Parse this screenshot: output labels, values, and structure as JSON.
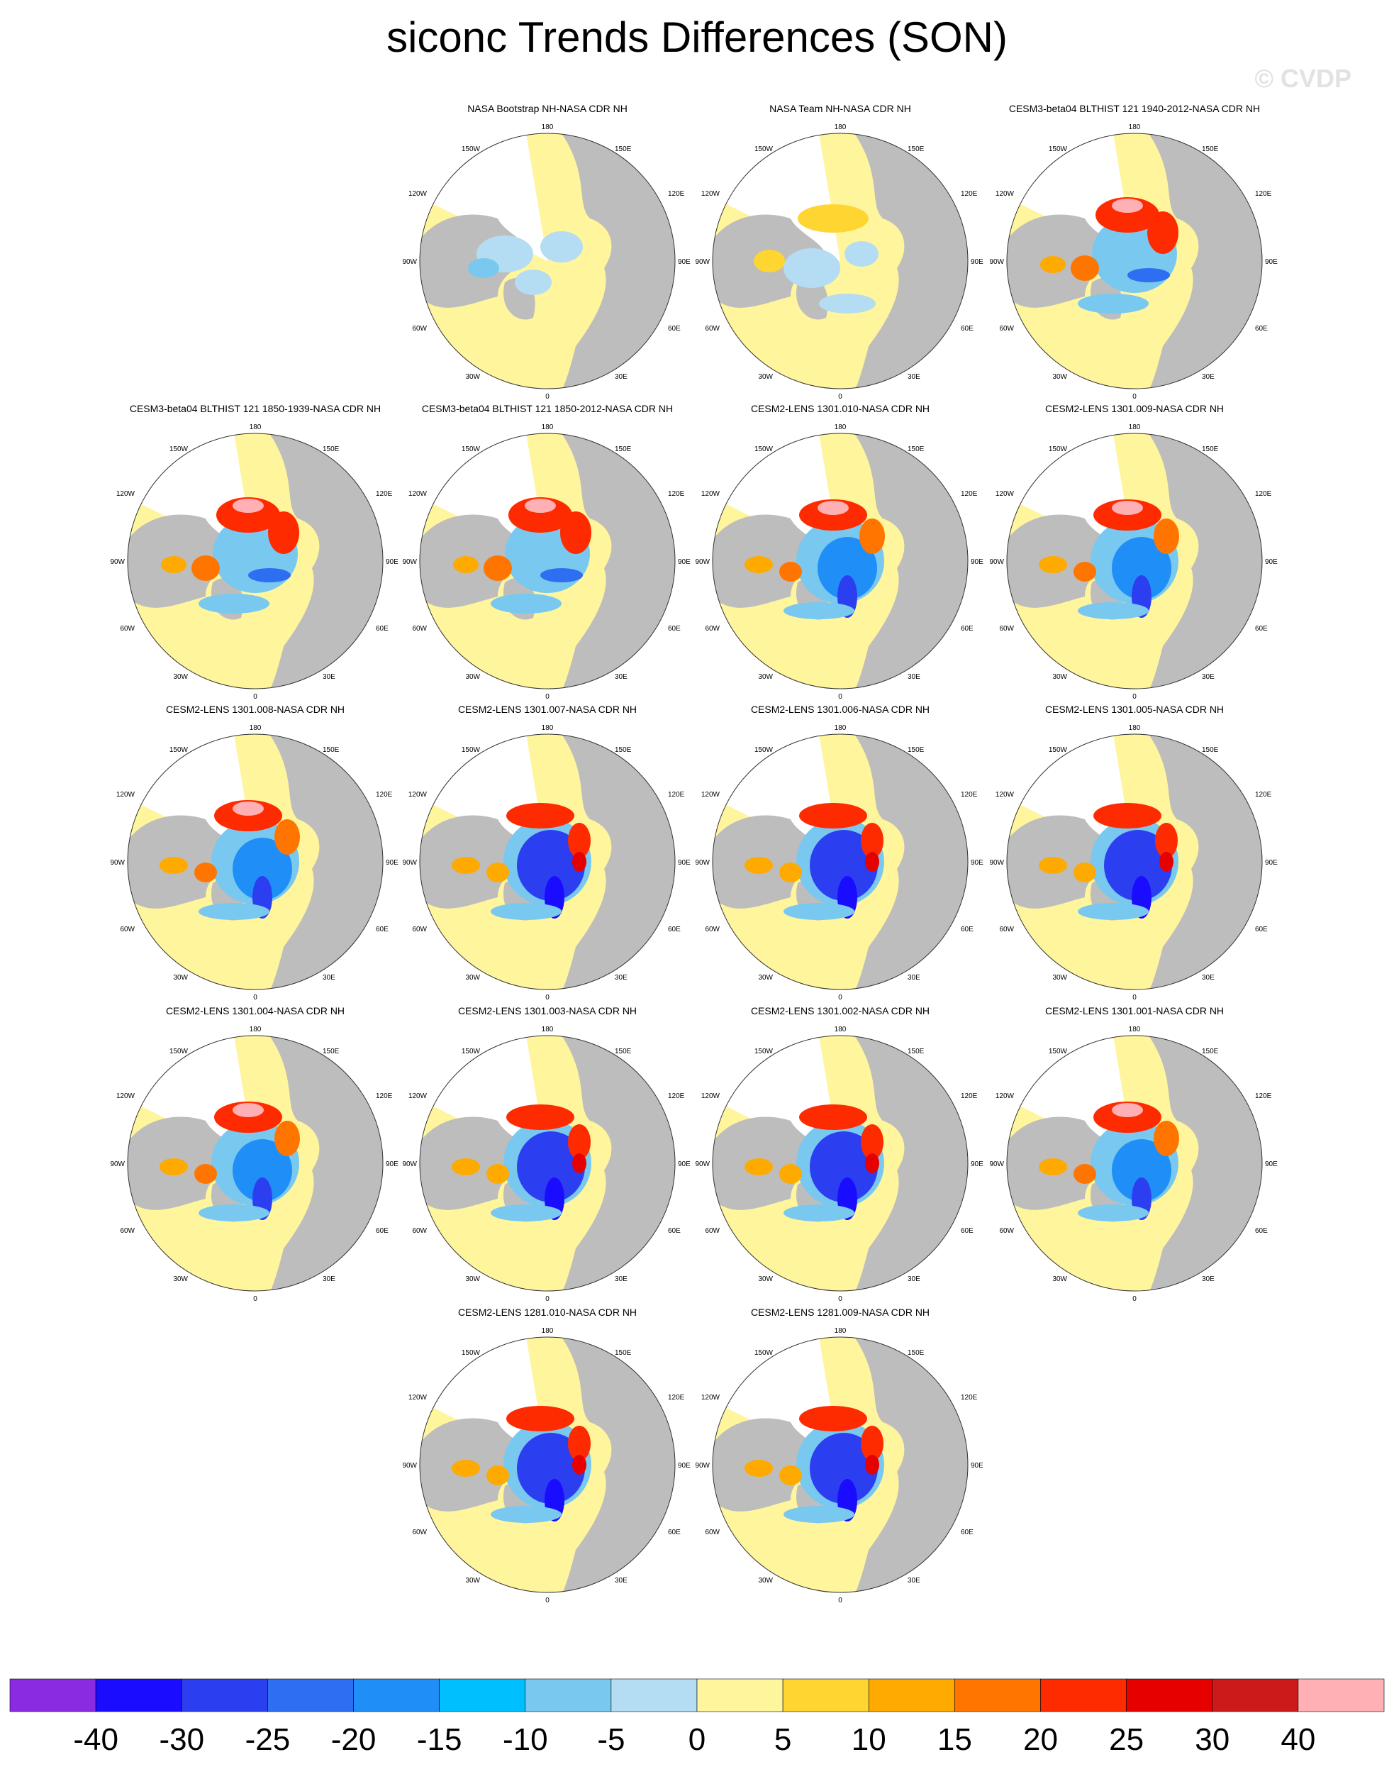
{
  "title": "siconc Trends Differences (SON)",
  "watermark": "© CVDP",
  "map_labels": {
    "top": "180",
    "bottom": "0",
    "left": "90W",
    "right": "90E",
    "others": [
      "150W",
      "150E",
      "120W",
      "120E",
      "60W",
      "60E",
      "30W",
      "30E"
    ]
  },
  "panels": [
    {
      "title": "NASA Bootstrap NH-NASA CDR NH",
      "pattern": "obs_bootstrap"
    },
    {
      "title": "NASA Team NH-NASA CDR NH",
      "pattern": "obs_team"
    },
    {
      "title": "CESM3-beta04 BLTHIST 121 1940-2012-NASA CDR NH",
      "pattern": "model_warm"
    },
    {
      "title": "CESM3-beta04 BLTHIST 121 1850-1939-NASA CDR NH",
      "pattern": "model_warm"
    },
    {
      "title": "CESM3-beta04 BLTHIST 121 1850-2012-NASA CDR NH",
      "pattern": "model_warm"
    },
    {
      "title": "CESM2-LENS 1301.010-NASA CDR NH",
      "pattern": "model_cold"
    },
    {
      "title": "CESM2-LENS 1301.009-NASA CDR NH",
      "pattern": "model_cold"
    },
    {
      "title": "CESM2-LENS 1301.008-NASA CDR NH",
      "pattern": "model_cold"
    },
    {
      "title": "CESM2-LENS 1301.007-NASA CDR NH",
      "pattern": "model_deep"
    },
    {
      "title": "CESM2-LENS 1301.006-NASA CDR NH",
      "pattern": "model_deep"
    },
    {
      "title": "CESM2-LENS 1301.005-NASA CDR NH",
      "pattern": "model_deep"
    },
    {
      "title": "CESM2-LENS 1301.004-NASA CDR NH",
      "pattern": "model_cold"
    },
    {
      "title": "CESM2-LENS 1301.003-NASA CDR NH",
      "pattern": "model_deep"
    },
    {
      "title": "CESM2-LENS 1301.002-NASA CDR NH",
      "pattern": "model_deep"
    },
    {
      "title": "CESM2-LENS 1301.001-NASA CDR NH",
      "pattern": "model_cold"
    },
    {
      "title": "CESM2-LENS 1281.010-NASA CDR NH",
      "pattern": "model_deep"
    },
    {
      "title": "CESM2-LENS 1281.009-NASA CDR NH",
      "pattern": "model_deep"
    }
  ],
  "colorbar": {
    "labels": [
      "-40",
      "-30",
      "-25",
      "-20",
      "-15",
      "-10",
      "-5",
      "0",
      "5",
      "10",
      "15",
      "20",
      "25",
      "30",
      "40"
    ],
    "colors": [
      "#8a2be2",
      "#1a0dff",
      "#2c3ff0",
      "#2e6ef0",
      "#1f8ff7",
      "#00bfff",
      "#79c8f0",
      "#b4dcf2",
      "#fff59d",
      "#ffd531",
      "#ffaa00",
      "#ff7500",
      "#ff2b00",
      "#e60000",
      "#cc1a1a",
      "#ffb0b4"
    ]
  },
  "colors": {
    "land": "#bdbdbd",
    "background": "#ffffff"
  }
}
